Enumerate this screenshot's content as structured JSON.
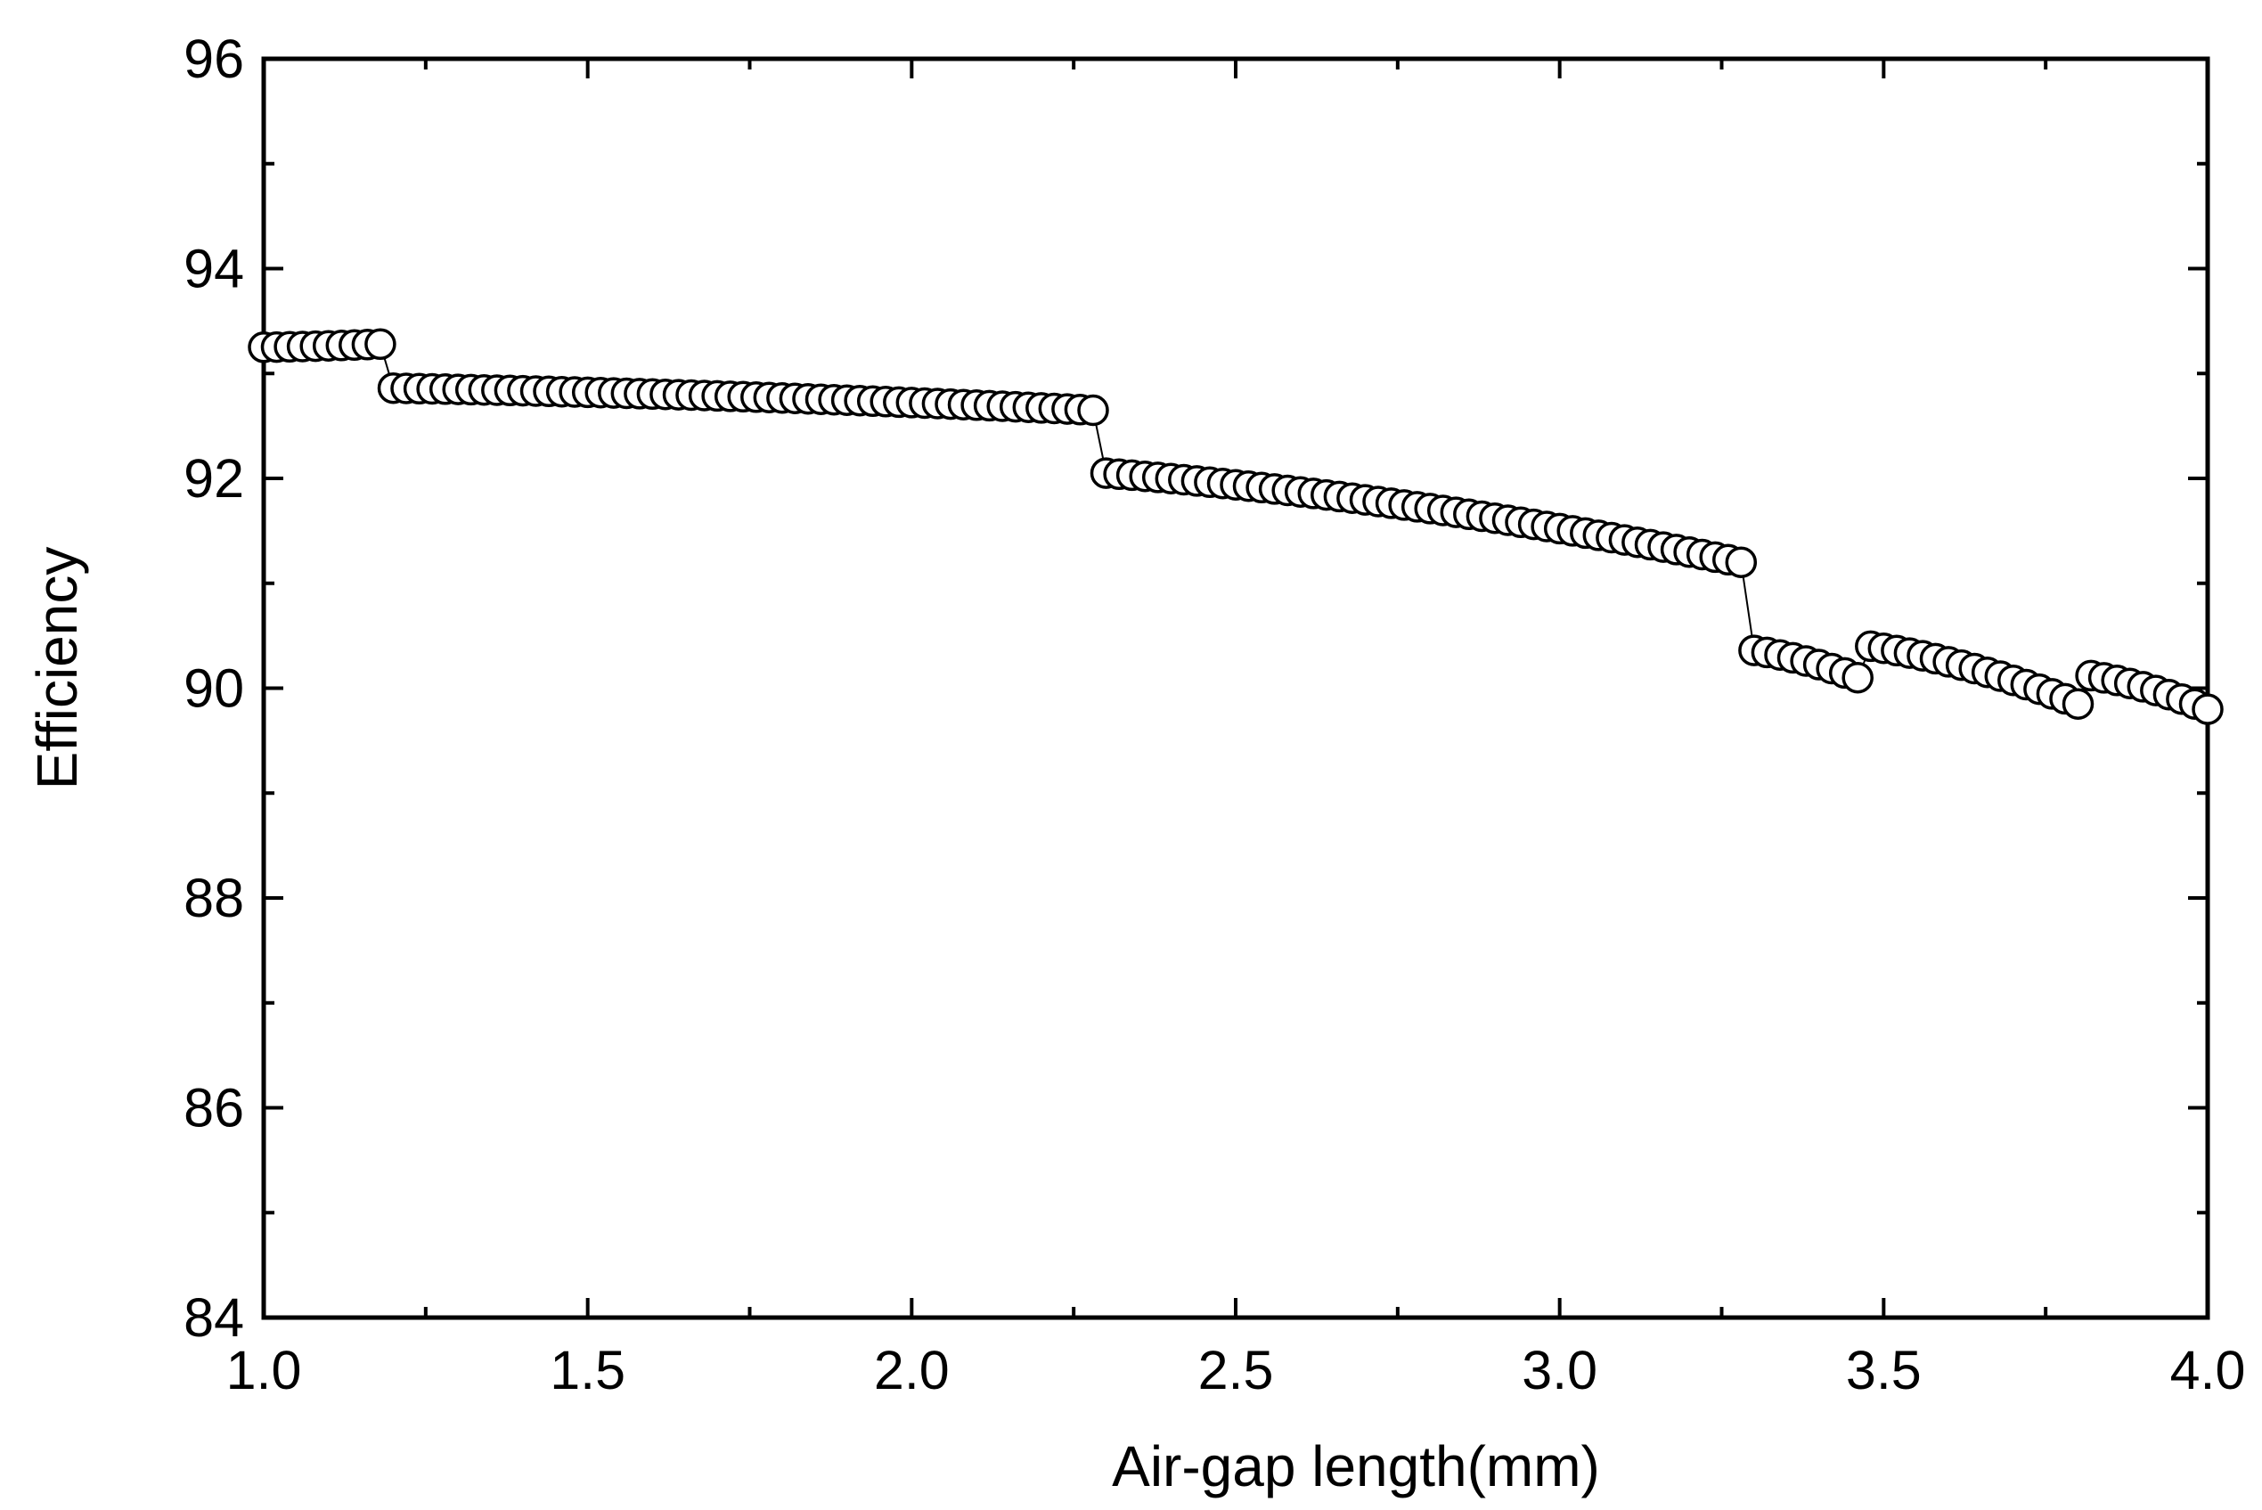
{
  "chart_data": {
    "type": "scatter",
    "xlabel": "Air-gap length(mm)",
    "ylabel": "Efficiency",
    "xlim": [
      1.0,
      4.0
    ],
    "ylim": [
      84,
      96
    ],
    "x_ticks": [
      "1.0",
      "1.5",
      "2.0",
      "2.5",
      "3.0",
      "3.5",
      "4.0"
    ],
    "y_ticks": [
      "84",
      "86",
      "88",
      "90",
      "92",
      "94",
      "96"
    ],
    "grid": false,
    "legend": false,
    "marker": "open-circle",
    "connected": true,
    "colors": {
      "marker_edge": "#000000",
      "marker_fill": "#ffffff",
      "line": "#000000"
    },
    "series": [
      {
        "segments": [
          {
            "x_start": 1.0,
            "x_end": 1.18,
            "y_start": 93.25,
            "y_end": 93.28,
            "step": 0.02
          },
          {
            "x_start": 1.2,
            "x_end": 2.28,
            "y_start": 92.86,
            "y_end": 92.65,
            "step": 0.02
          },
          {
            "x_start": 2.3,
            "x_end": 3.28,
            "y_start": 92.05,
            "y_end": 91.2,
            "step": 0.02
          },
          {
            "x_start": 3.3,
            "x_end": 3.46,
            "y_start": 90.36,
            "y_end": 90.1,
            "step": 0.02
          },
          {
            "x_start": 3.48,
            "x_end": 3.8,
            "y_start": 90.4,
            "y_end": 89.85,
            "step": 0.02
          },
          {
            "x_start": 3.82,
            "x_end": 4.0,
            "y_start": 90.12,
            "y_end": 89.8,
            "step": 0.02
          }
        ]
      }
    ]
  }
}
